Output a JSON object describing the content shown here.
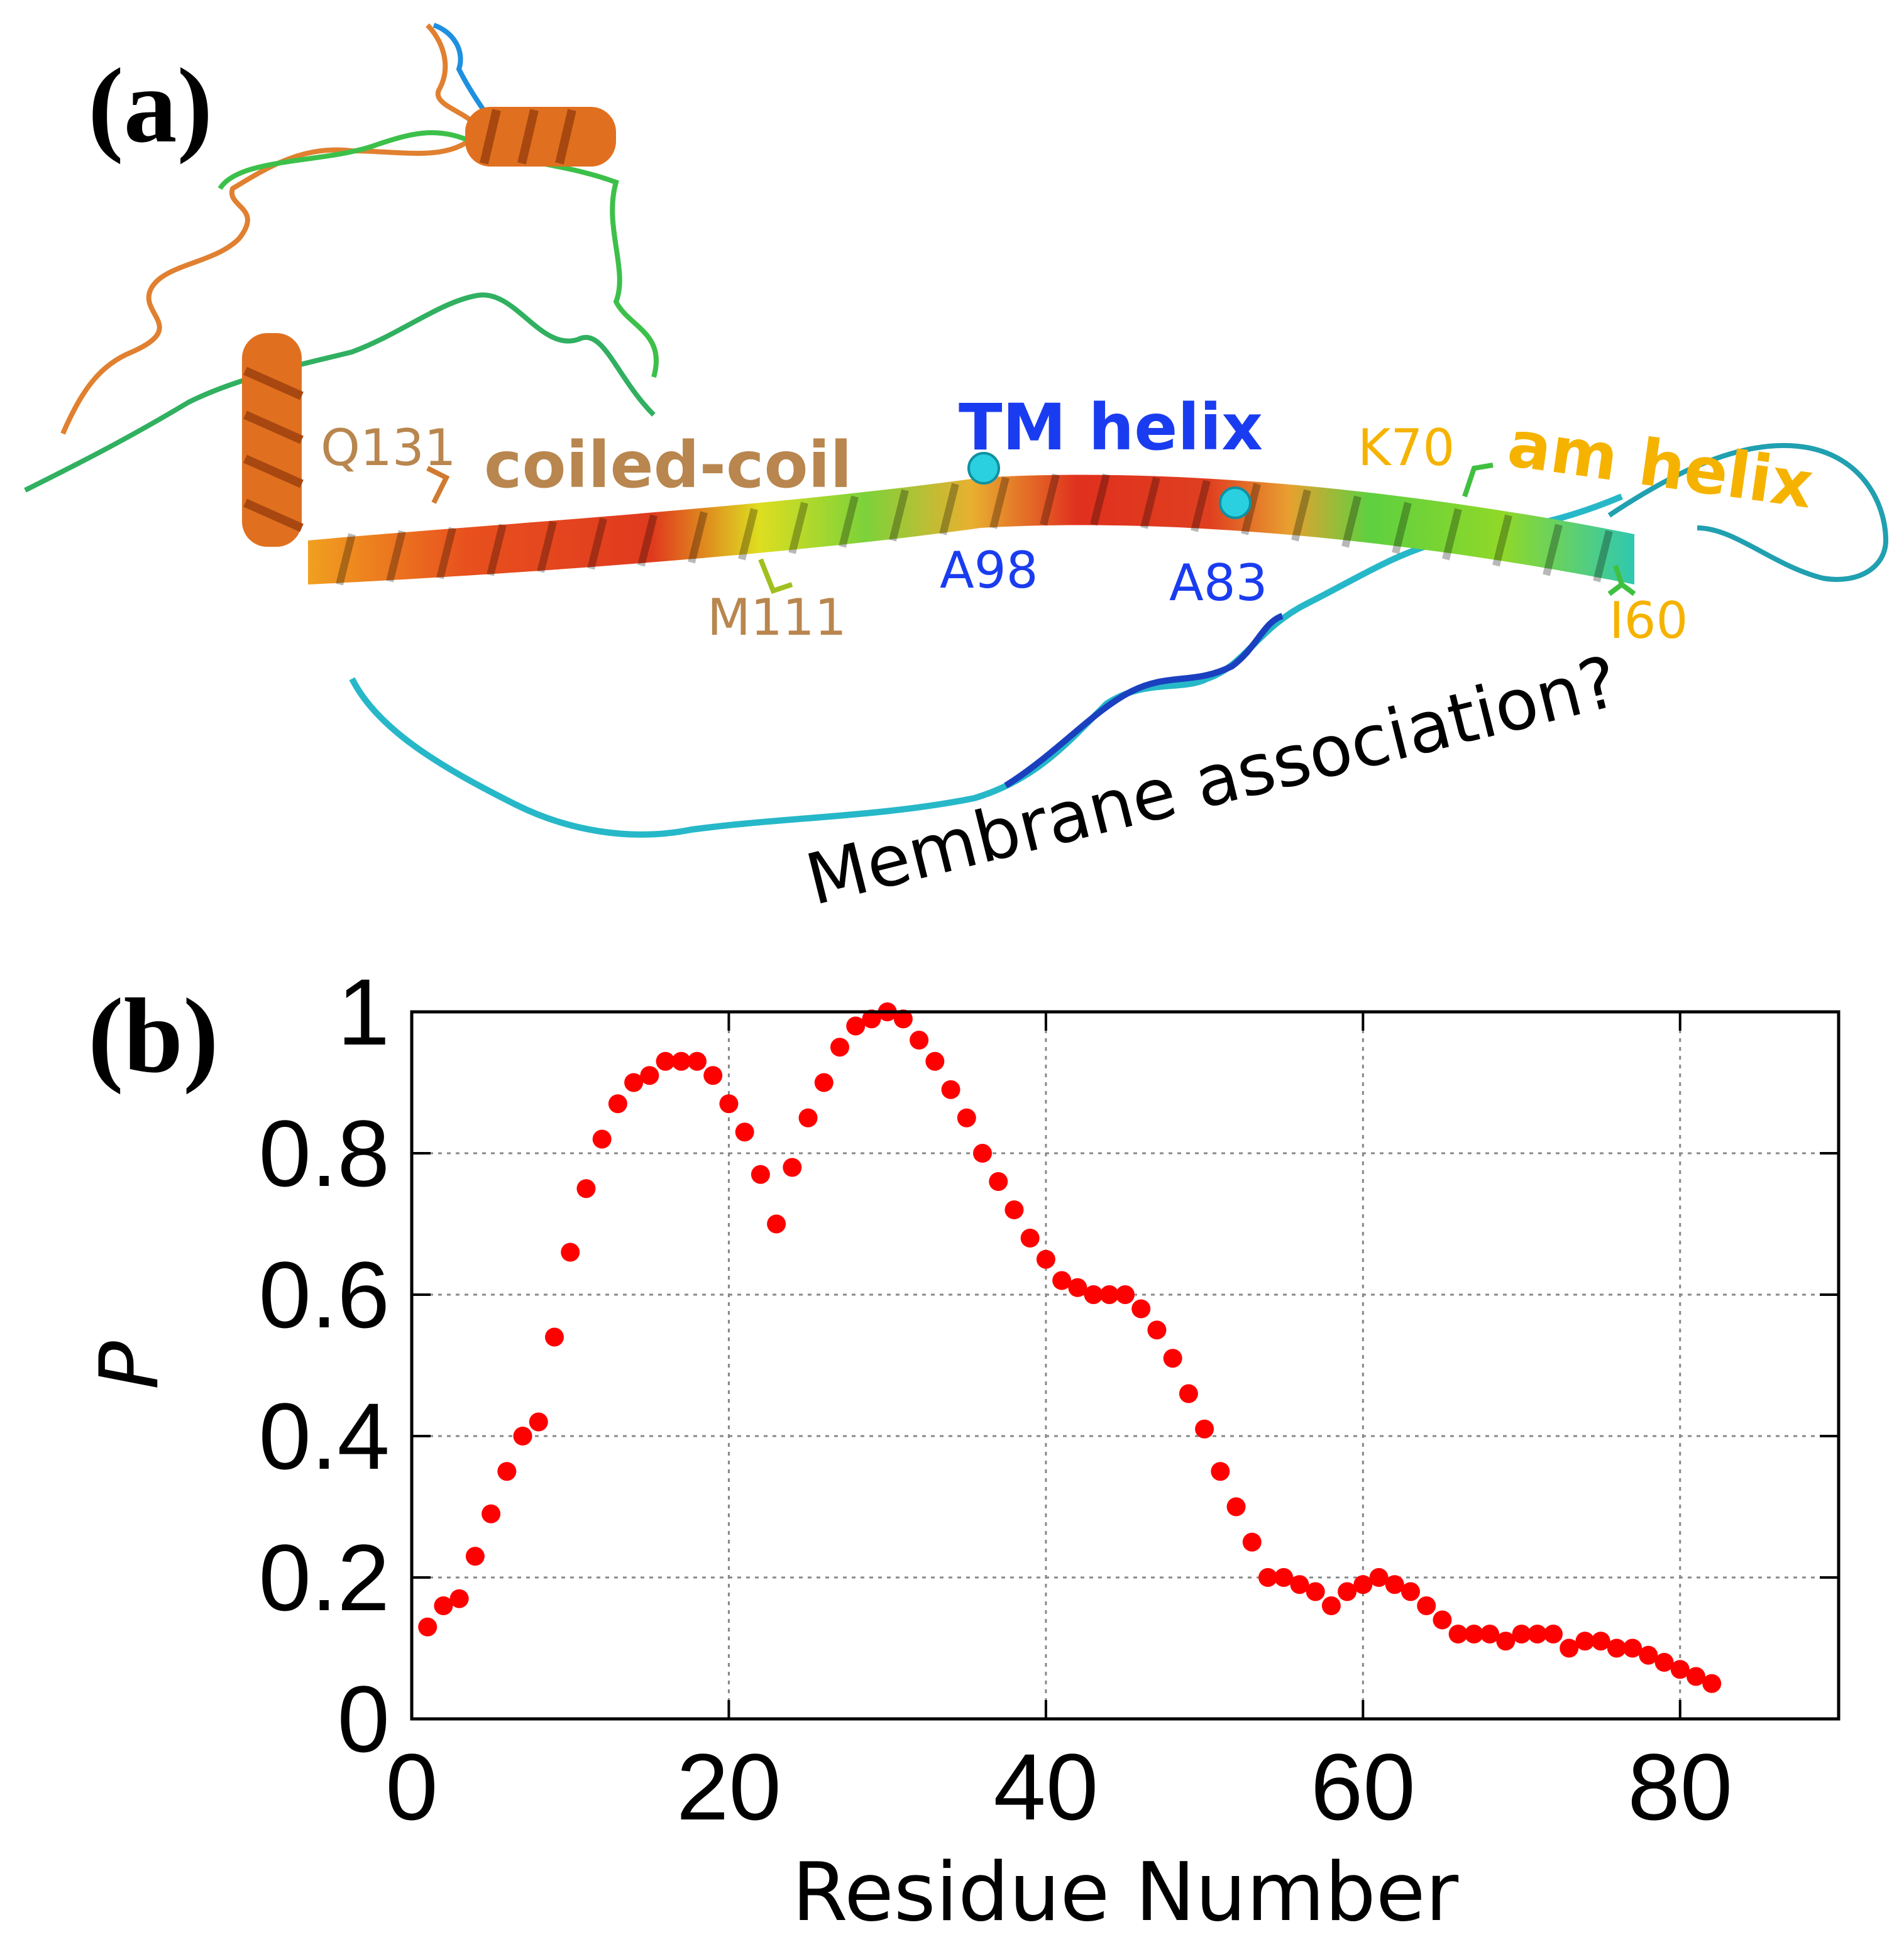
{
  "panel_a": {
    "label": "(a)",
    "annotations": {
      "tm_helix": "TM helix",
      "coiled_coil": "coiled-coil",
      "am_helix": "am helix",
      "q131": "Q131",
      "m111": "M111",
      "a98": "A98",
      "a83": "A83",
      "k70": "K70",
      "i60": "I60",
      "membrane": "Membrane association?"
    },
    "colors": {
      "tm": "#1a3cf0",
      "coiled": "#b8864e",
      "am": "#f5b300",
      "black": "#000000"
    }
  },
  "panel_b": {
    "label": "(b)"
  },
  "chart_data": {
    "type": "scatter",
    "title": "",
    "xlabel": "Residue Number",
    "ylabel": "P",
    "xlim": [
      0,
      90
    ],
    "ylim": [
      0,
      1
    ],
    "xticks": [
      0,
      20,
      40,
      60,
      80
    ],
    "yticks": [
      0,
      0.2,
      0.4,
      0.6,
      0.8,
      1
    ],
    "ytick_labels": [
      "0",
      "0.2",
      "0.4",
      "0.6",
      "0.8",
      "1"
    ],
    "xtick_labels": [
      "0",
      "20",
      "40",
      "60",
      "80"
    ],
    "grid": true,
    "marker_color": "#ff0000",
    "series": [
      {
        "name": "P",
        "x": [
          1,
          2,
          3,
          4,
          5,
          6,
          7,
          8,
          9,
          10,
          11,
          12,
          13,
          14,
          15,
          16,
          17,
          18,
          19,
          20,
          21,
          22,
          23,
          24,
          25,
          26,
          27,
          28,
          29,
          30,
          31,
          32,
          33,
          34,
          35,
          36,
          37,
          38,
          39,
          40,
          41,
          42,
          43,
          44,
          45,
          46,
          47,
          48,
          49,
          50,
          51,
          52,
          53,
          54,
          55,
          56,
          57,
          58,
          59,
          60,
          61,
          62,
          63,
          64,
          65,
          66,
          67,
          68,
          69,
          70,
          71,
          72,
          73,
          74,
          75,
          76,
          77,
          78,
          79,
          80,
          81,
          82
        ],
        "y": [
          0.13,
          0.16,
          0.17,
          0.23,
          0.29,
          0.35,
          0.4,
          0.42,
          0.54,
          0.66,
          0.75,
          0.82,
          0.87,
          0.9,
          0.91,
          0.93,
          0.93,
          0.93,
          0.91,
          0.87,
          0.83,
          0.77,
          0.7,
          0.78,
          0.85,
          0.9,
          0.95,
          0.98,
          0.99,
          1.0,
          0.99,
          0.96,
          0.93,
          0.89,
          0.85,
          0.8,
          0.76,
          0.72,
          0.68,
          0.65,
          0.62,
          0.61,
          0.6,
          0.6,
          0.6,
          0.58,
          0.55,
          0.51,
          0.46,
          0.41,
          0.35,
          0.3,
          0.25,
          0.2,
          0.2,
          0.19,
          0.18,
          0.16,
          0.18,
          0.19,
          0.2,
          0.19,
          0.18,
          0.16,
          0.14,
          0.12,
          0.12,
          0.12,
          0.11,
          0.12,
          0.12,
          0.12,
          0.1,
          0.11,
          0.11,
          0.1,
          0.1,
          0.09,
          0.08,
          0.07,
          0.06,
          0.05
        ]
      }
    ]
  }
}
